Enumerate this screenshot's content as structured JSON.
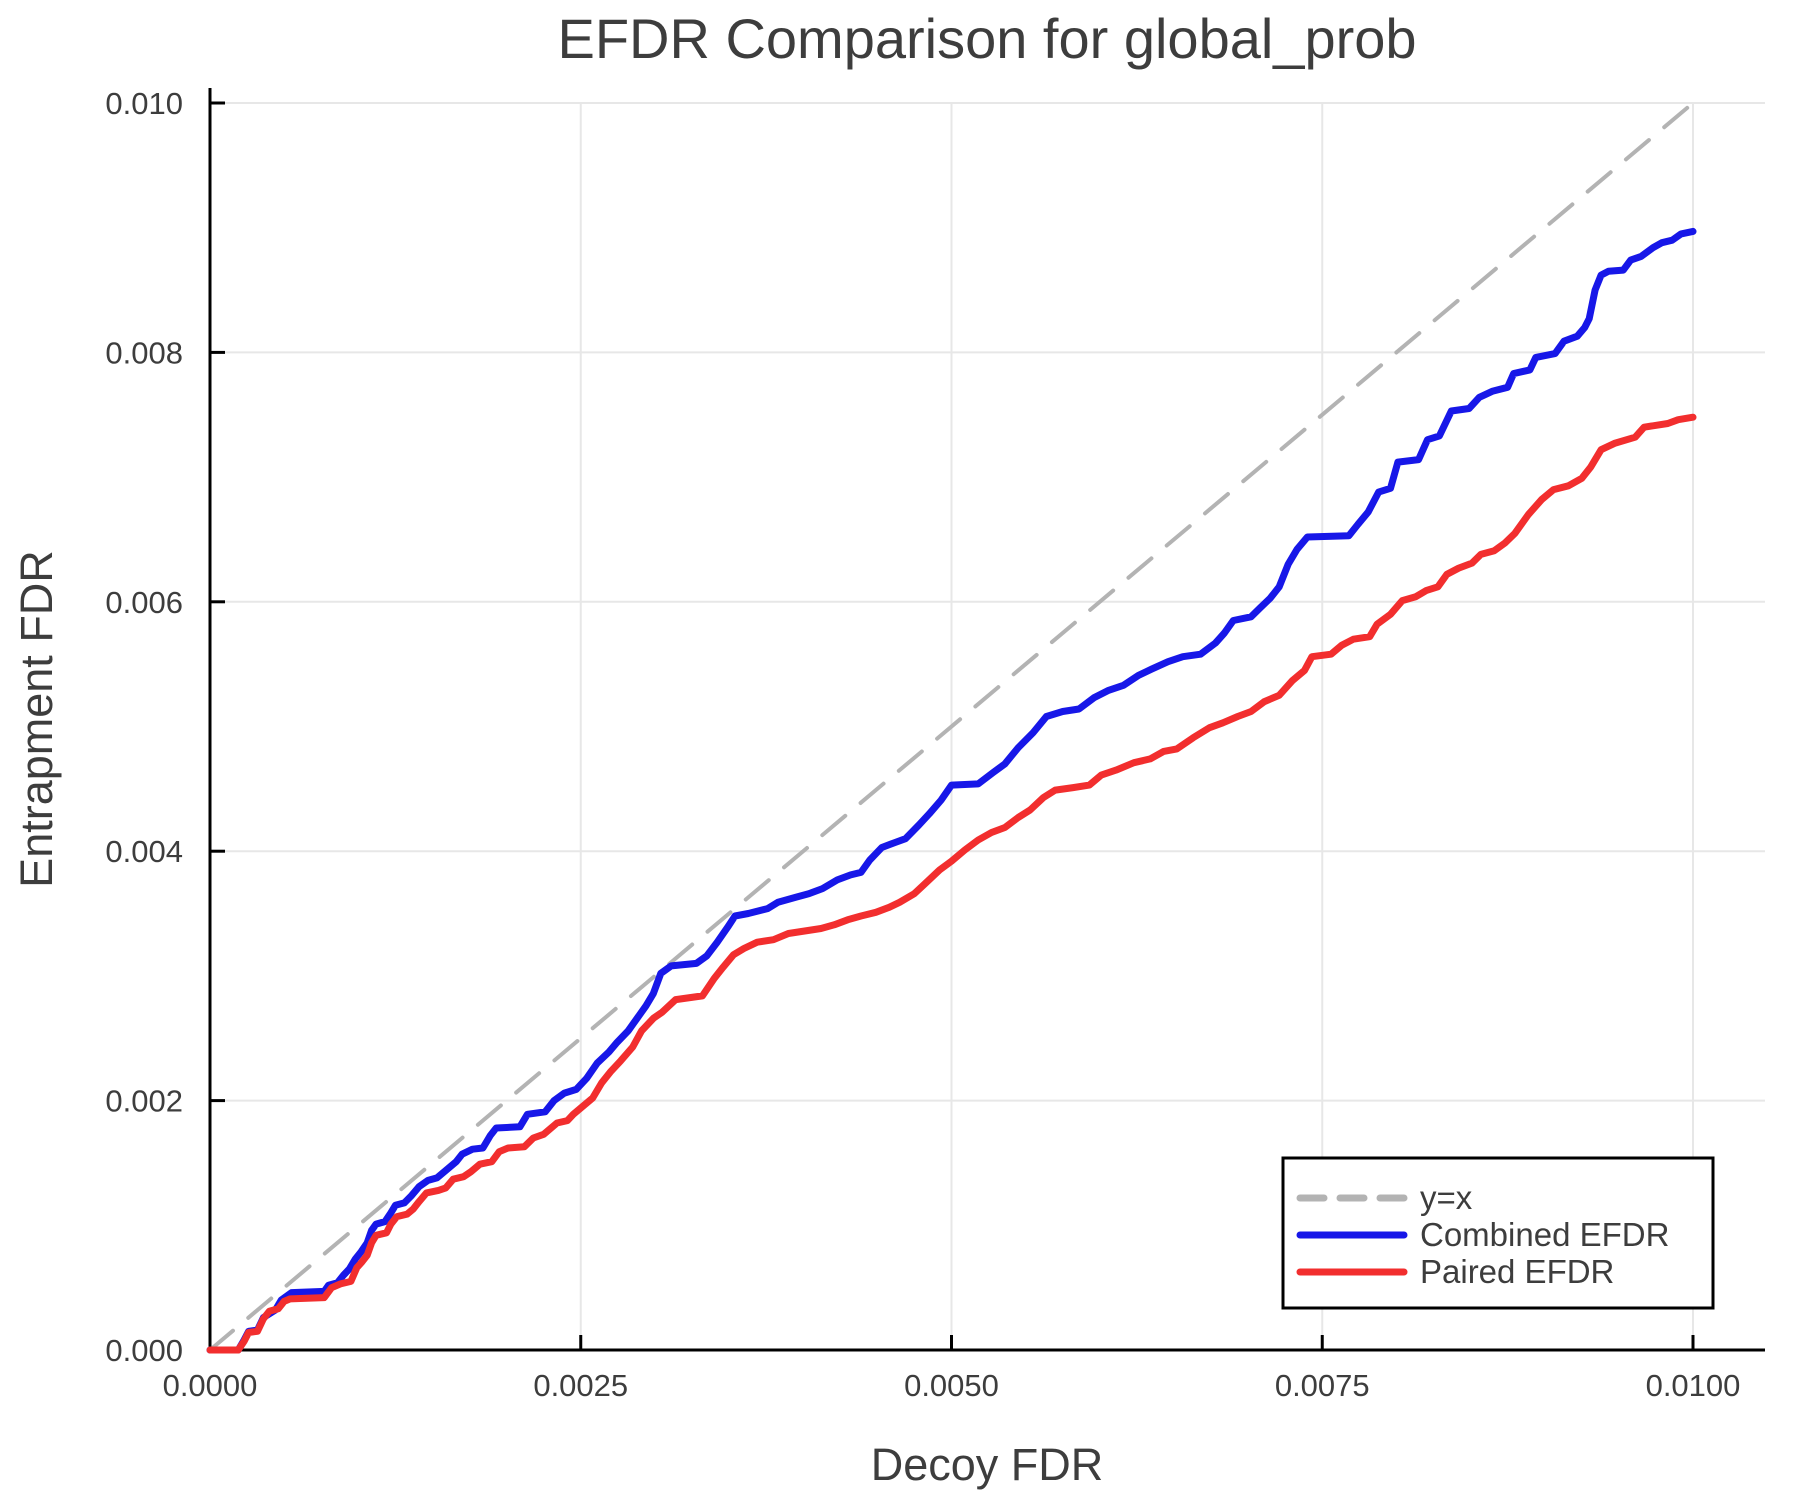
{
  "title": "EFDR Comparison for global_prob",
  "axes": {
    "x_label": "Decoy FDR",
    "y_label": "Entrapment FDR"
  },
  "legend": {
    "position": "bottom-right",
    "items": [
      {
        "label": "y=x",
        "color": "#b3b3b3",
        "style": "dashed"
      },
      {
        "label": "Combined EFDR",
        "color": "#1717e8",
        "style": "solid"
      },
      {
        "label": "Paired EFDR",
        "color": "#f22e2e",
        "style": "solid"
      }
    ]
  },
  "colors": {
    "identity_line": "#b3b3b3",
    "combined_efdr": "#1717e8",
    "paired_efdr": "#f22e2e",
    "grid": "#e7e7e7",
    "axis": "#000000",
    "text": "#3d3d3d",
    "legend_border": "#000000",
    "legend_fill": "#ffffff"
  },
  "chart_data": {
    "type": "line",
    "title": "EFDR Comparison for global_prob",
    "xlabel": "Decoy FDR",
    "ylabel": "Entrapment FDR",
    "xlim": [
      0,
      0.01
    ],
    "ylim": [
      0,
      0.01
    ],
    "grid": true,
    "legend_position": "bottom-right",
    "point_unit": 0.0001,
    "x_ticks": {
      "values": [
        0,
        0.0025,
        0.005,
        0.0075,
        0.01
      ],
      "labels": [
        "0.0000",
        "0.0025",
        "0.0050",
        "0.0075",
        "0.0100"
      ]
    },
    "y_ticks": {
      "values": [
        0,
        0.002,
        0.004,
        0.006,
        0.008,
        0.01
      ],
      "labels": [
        "0.000",
        "0.002",
        "0.004",
        "0.006",
        "0.008",
        "0.010"
      ]
    },
    "series": [
      {
        "name": "y=x",
        "color": "#b3b3b3",
        "dashed": true,
        "width": 4,
        "points": [
          [
            0,
            0
          ],
          [
            100,
            100
          ]
        ]
      },
      {
        "name": "Combined EFDR",
        "color": "#1717e8",
        "dashed": false,
        "width": 7,
        "points": [
          [
            0,
            0
          ],
          [
            1.9,
            0
          ],
          [
            2.3,
            0.8
          ],
          [
            2.6,
            1.5
          ],
          [
            3.2,
            1.6
          ],
          [
            3.6,
            2.6
          ],
          [
            4.4,
            3.2
          ],
          [
            4.8,
            4
          ],
          [
            5.5,
            4.6
          ],
          [
            7.7,
            4.7
          ],
          [
            8,
            5.2
          ],
          [
            8.6,
            5.4
          ],
          [
            9,
            6
          ],
          [
            9.4,
            6.5
          ],
          [
            9.8,
            7.3
          ],
          [
            10.2,
            7.9
          ],
          [
            10.6,
            8.6
          ],
          [
            10.9,
            9.6
          ],
          [
            11.2,
            10.1
          ],
          [
            11.8,
            10.3
          ],
          [
            12.2,
            11
          ],
          [
            12.5,
            11.6
          ],
          [
            13.1,
            11.8
          ],
          [
            13.6,
            12.4
          ],
          [
            14.1,
            13.1
          ],
          [
            14.7,
            13.6
          ],
          [
            15.3,
            13.8
          ],
          [
            16,
            14.5
          ],
          [
            16.6,
            15.1
          ],
          [
            17,
            15.7
          ],
          [
            17.7,
            16.1
          ],
          [
            18.4,
            16.2
          ],
          [
            18.9,
            17.2
          ],
          [
            19.3,
            17.8
          ],
          [
            20.9,
            17.9
          ],
          [
            21.4,
            18.9
          ],
          [
            22.6,
            19.1
          ],
          [
            23.2,
            20
          ],
          [
            23.9,
            20.6
          ],
          [
            24.7,
            20.9
          ],
          [
            25.4,
            21.8
          ],
          [
            26.1,
            23
          ],
          [
            26.9,
            23.9
          ],
          [
            27.4,
            24.6
          ],
          [
            28.2,
            25.6
          ],
          [
            28.8,
            26.6
          ],
          [
            29.4,
            27.6
          ],
          [
            29.9,
            28.6
          ],
          [
            30.4,
            30.2
          ],
          [
            31.1,
            30.8
          ],
          [
            32.8,
            31
          ],
          [
            33.5,
            31.6
          ],
          [
            34.2,
            32.7
          ],
          [
            34.9,
            33.9
          ],
          [
            35.4,
            34.8
          ],
          [
            36.3,
            35
          ],
          [
            37.6,
            35.4
          ],
          [
            38.3,
            35.9
          ],
          [
            39.5,
            36.3
          ],
          [
            40.4,
            36.6
          ],
          [
            41.3,
            37
          ],
          [
            42.3,
            37.7
          ],
          [
            43.2,
            38.1
          ],
          [
            43.9,
            38.3
          ],
          [
            44.5,
            39.3
          ],
          [
            45.3,
            40.3
          ],
          [
            46.2,
            40.7
          ],
          [
            46.9,
            41
          ],
          [
            47.8,
            42.1
          ],
          [
            48.5,
            43
          ],
          [
            49.3,
            44.1
          ],
          [
            50,
            45.3
          ],
          [
            51.8,
            45.4
          ],
          [
            52.8,
            46.3
          ],
          [
            53.6,
            47
          ],
          [
            54.5,
            48.3
          ],
          [
            55.5,
            49.5
          ],
          [
            56.4,
            50.8
          ],
          [
            57.5,
            51.2
          ],
          [
            58.6,
            51.4
          ],
          [
            59.6,
            52.3
          ],
          [
            60.6,
            52.9
          ],
          [
            61.6,
            53.3
          ],
          [
            62.6,
            54.1
          ],
          [
            63.5,
            54.6
          ],
          [
            64.6,
            55.2
          ],
          [
            65.6,
            55.6
          ],
          [
            66.8,
            55.8
          ],
          [
            67.8,
            56.7
          ],
          [
            68.4,
            57.5
          ],
          [
            69,
            58.5
          ],
          [
            70.2,
            58.8
          ],
          [
            70.8,
            59.5
          ],
          [
            71.5,
            60.3
          ],
          [
            72.1,
            61.2
          ],
          [
            72.7,
            63
          ],
          [
            73.3,
            64.2
          ],
          [
            74,
            65.2
          ],
          [
            76.8,
            65.3
          ],
          [
            77.4,
            66.2
          ],
          [
            78.1,
            67.2
          ],
          [
            78.8,
            68.8
          ],
          [
            79.6,
            69.1
          ],
          [
            80.1,
            71.2
          ],
          [
            81.5,
            71.4
          ],
          [
            82.1,
            73
          ],
          [
            82.9,
            73.3
          ],
          [
            83.7,
            75.3
          ],
          [
            84.9,
            75.5
          ],
          [
            85.6,
            76.4
          ],
          [
            86.5,
            76.9
          ],
          [
            87.5,
            77.2
          ],
          [
            87.9,
            78.3
          ],
          [
            89,
            78.6
          ],
          [
            89.4,
            79.6
          ],
          [
            90.7,
            79.9
          ],
          [
            91.3,
            80.9
          ],
          [
            92.2,
            81.3
          ],
          [
            92.7,
            82
          ],
          [
            93,
            82.7
          ],
          [
            93.4,
            85
          ],
          [
            93.8,
            86.2
          ],
          [
            94.3,
            86.5
          ],
          [
            95.3,
            86.6
          ],
          [
            95.8,
            87.4
          ],
          [
            96.5,
            87.7
          ],
          [
            97.3,
            88.4
          ],
          [
            97.9,
            88.8
          ],
          [
            98.6,
            89
          ],
          [
            99.2,
            89.5
          ],
          [
            100,
            89.7
          ]
        ]
      },
      {
        "name": "Paired EFDR",
        "color": "#f22e2e",
        "dashed": false,
        "width": 7,
        "points": [
          [
            0,
            0
          ],
          [
            1.9,
            0
          ],
          [
            2.3,
            0.7
          ],
          [
            2.6,
            1.4
          ],
          [
            3.2,
            1.5
          ],
          [
            3.6,
            2.5
          ],
          [
            4,
            3.1
          ],
          [
            4.6,
            3.3
          ],
          [
            5,
            3.9
          ],
          [
            5.4,
            4.1
          ],
          [
            7.7,
            4.2
          ],
          [
            8.2,
            5
          ],
          [
            8.8,
            5.3
          ],
          [
            9.5,
            5.5
          ],
          [
            9.9,
            6.6
          ],
          [
            10.2,
            7
          ],
          [
            10.6,
            7.6
          ],
          [
            10.9,
            8.6
          ],
          [
            11.2,
            9.2
          ],
          [
            11.9,
            9.4
          ],
          [
            12.2,
            10.1
          ],
          [
            12.6,
            10.7
          ],
          [
            13.3,
            10.9
          ],
          [
            13.7,
            11.3
          ],
          [
            14.1,
            11.9
          ],
          [
            14.6,
            12.6
          ],
          [
            15.4,
            12.8
          ],
          [
            15.9,
            13
          ],
          [
            16.4,
            13.7
          ],
          [
            17.1,
            13.9
          ],
          [
            17.6,
            14.3
          ],
          [
            18.2,
            14.9
          ],
          [
            19,
            15.1
          ],
          [
            19.5,
            15.9
          ],
          [
            20.1,
            16.2
          ],
          [
            21.2,
            16.3
          ],
          [
            21.8,
            17
          ],
          [
            22.5,
            17.3
          ],
          [
            23.4,
            18.2
          ],
          [
            24.1,
            18.4
          ],
          [
            24.5,
            18.9
          ],
          [
            25.1,
            19.5
          ],
          [
            25.8,
            20.2
          ],
          [
            26.4,
            21.4
          ],
          [
            27,
            22.3
          ],
          [
            27.7,
            23.2
          ],
          [
            28.5,
            24.3
          ],
          [
            29.1,
            25.6
          ],
          [
            29.9,
            26.6
          ],
          [
            30.5,
            27.1
          ],
          [
            31.4,
            28.1
          ],
          [
            33.2,
            28.4
          ],
          [
            34,
            29.8
          ],
          [
            34.6,
            30.7
          ],
          [
            35.3,
            31.7
          ],
          [
            36,
            32.2
          ],
          [
            36.9,
            32.7
          ],
          [
            38,
            32.9
          ],
          [
            39,
            33.4
          ],
          [
            40.1,
            33.6
          ],
          [
            41.2,
            33.8
          ],
          [
            42.1,
            34.1
          ],
          [
            43,
            34.5
          ],
          [
            43.9,
            34.8
          ],
          [
            44.9,
            35.1
          ],
          [
            45.8,
            35.5
          ],
          [
            46.5,
            35.9
          ],
          [
            47.5,
            36.6
          ],
          [
            48.4,
            37.6
          ],
          [
            49.2,
            38.5
          ],
          [
            50,
            39.2
          ],
          [
            50.9,
            40.1
          ],
          [
            51.8,
            40.9
          ],
          [
            52.7,
            41.5
          ],
          [
            53.6,
            41.9
          ],
          [
            54.5,
            42.7
          ],
          [
            55.3,
            43.3
          ],
          [
            56.2,
            44.3
          ],
          [
            57,
            44.9
          ],
          [
            58.2,
            45.1
          ],
          [
            59.3,
            45.3
          ],
          [
            60.1,
            46.1
          ],
          [
            61.1,
            46.5
          ],
          [
            62.3,
            47.1
          ],
          [
            63.4,
            47.4
          ],
          [
            64.3,
            48
          ],
          [
            65.2,
            48.2
          ],
          [
            66.3,
            49.1
          ],
          [
            67.4,
            49.9
          ],
          [
            68.3,
            50.3
          ],
          [
            69.3,
            50.8
          ],
          [
            70.2,
            51.2
          ],
          [
            71.1,
            52
          ],
          [
            72.1,
            52.5
          ],
          [
            73,
            53.7
          ],
          [
            73.8,
            54.5
          ],
          [
            74.3,
            55.6
          ],
          [
            75.6,
            55.8
          ],
          [
            76.3,
            56.5
          ],
          [
            77.1,
            57
          ],
          [
            78.2,
            57.2
          ],
          [
            78.7,
            58.2
          ],
          [
            79.6,
            59
          ],
          [
            80.4,
            60.1
          ],
          [
            81.3,
            60.4
          ],
          [
            82,
            60.9
          ],
          [
            82.8,
            61.2
          ],
          [
            83.4,
            62.2
          ],
          [
            84.2,
            62.7
          ],
          [
            85.1,
            63.1
          ],
          [
            85.7,
            63.8
          ],
          [
            86.6,
            64.1
          ],
          [
            87.3,
            64.7
          ],
          [
            88,
            65.5
          ],
          [
            88.9,
            67
          ],
          [
            89.8,
            68.2
          ],
          [
            90.6,
            69
          ],
          [
            91.6,
            69.3
          ],
          [
            92.5,
            69.9
          ],
          [
            93.1,
            70.8
          ],
          [
            93.8,
            72.2
          ],
          [
            94.7,
            72.7
          ],
          [
            96.1,
            73.2
          ],
          [
            96.7,
            74
          ],
          [
            98.3,
            74.3
          ],
          [
            99,
            74.6
          ],
          [
            100,
            74.8
          ]
        ]
      }
    ]
  }
}
